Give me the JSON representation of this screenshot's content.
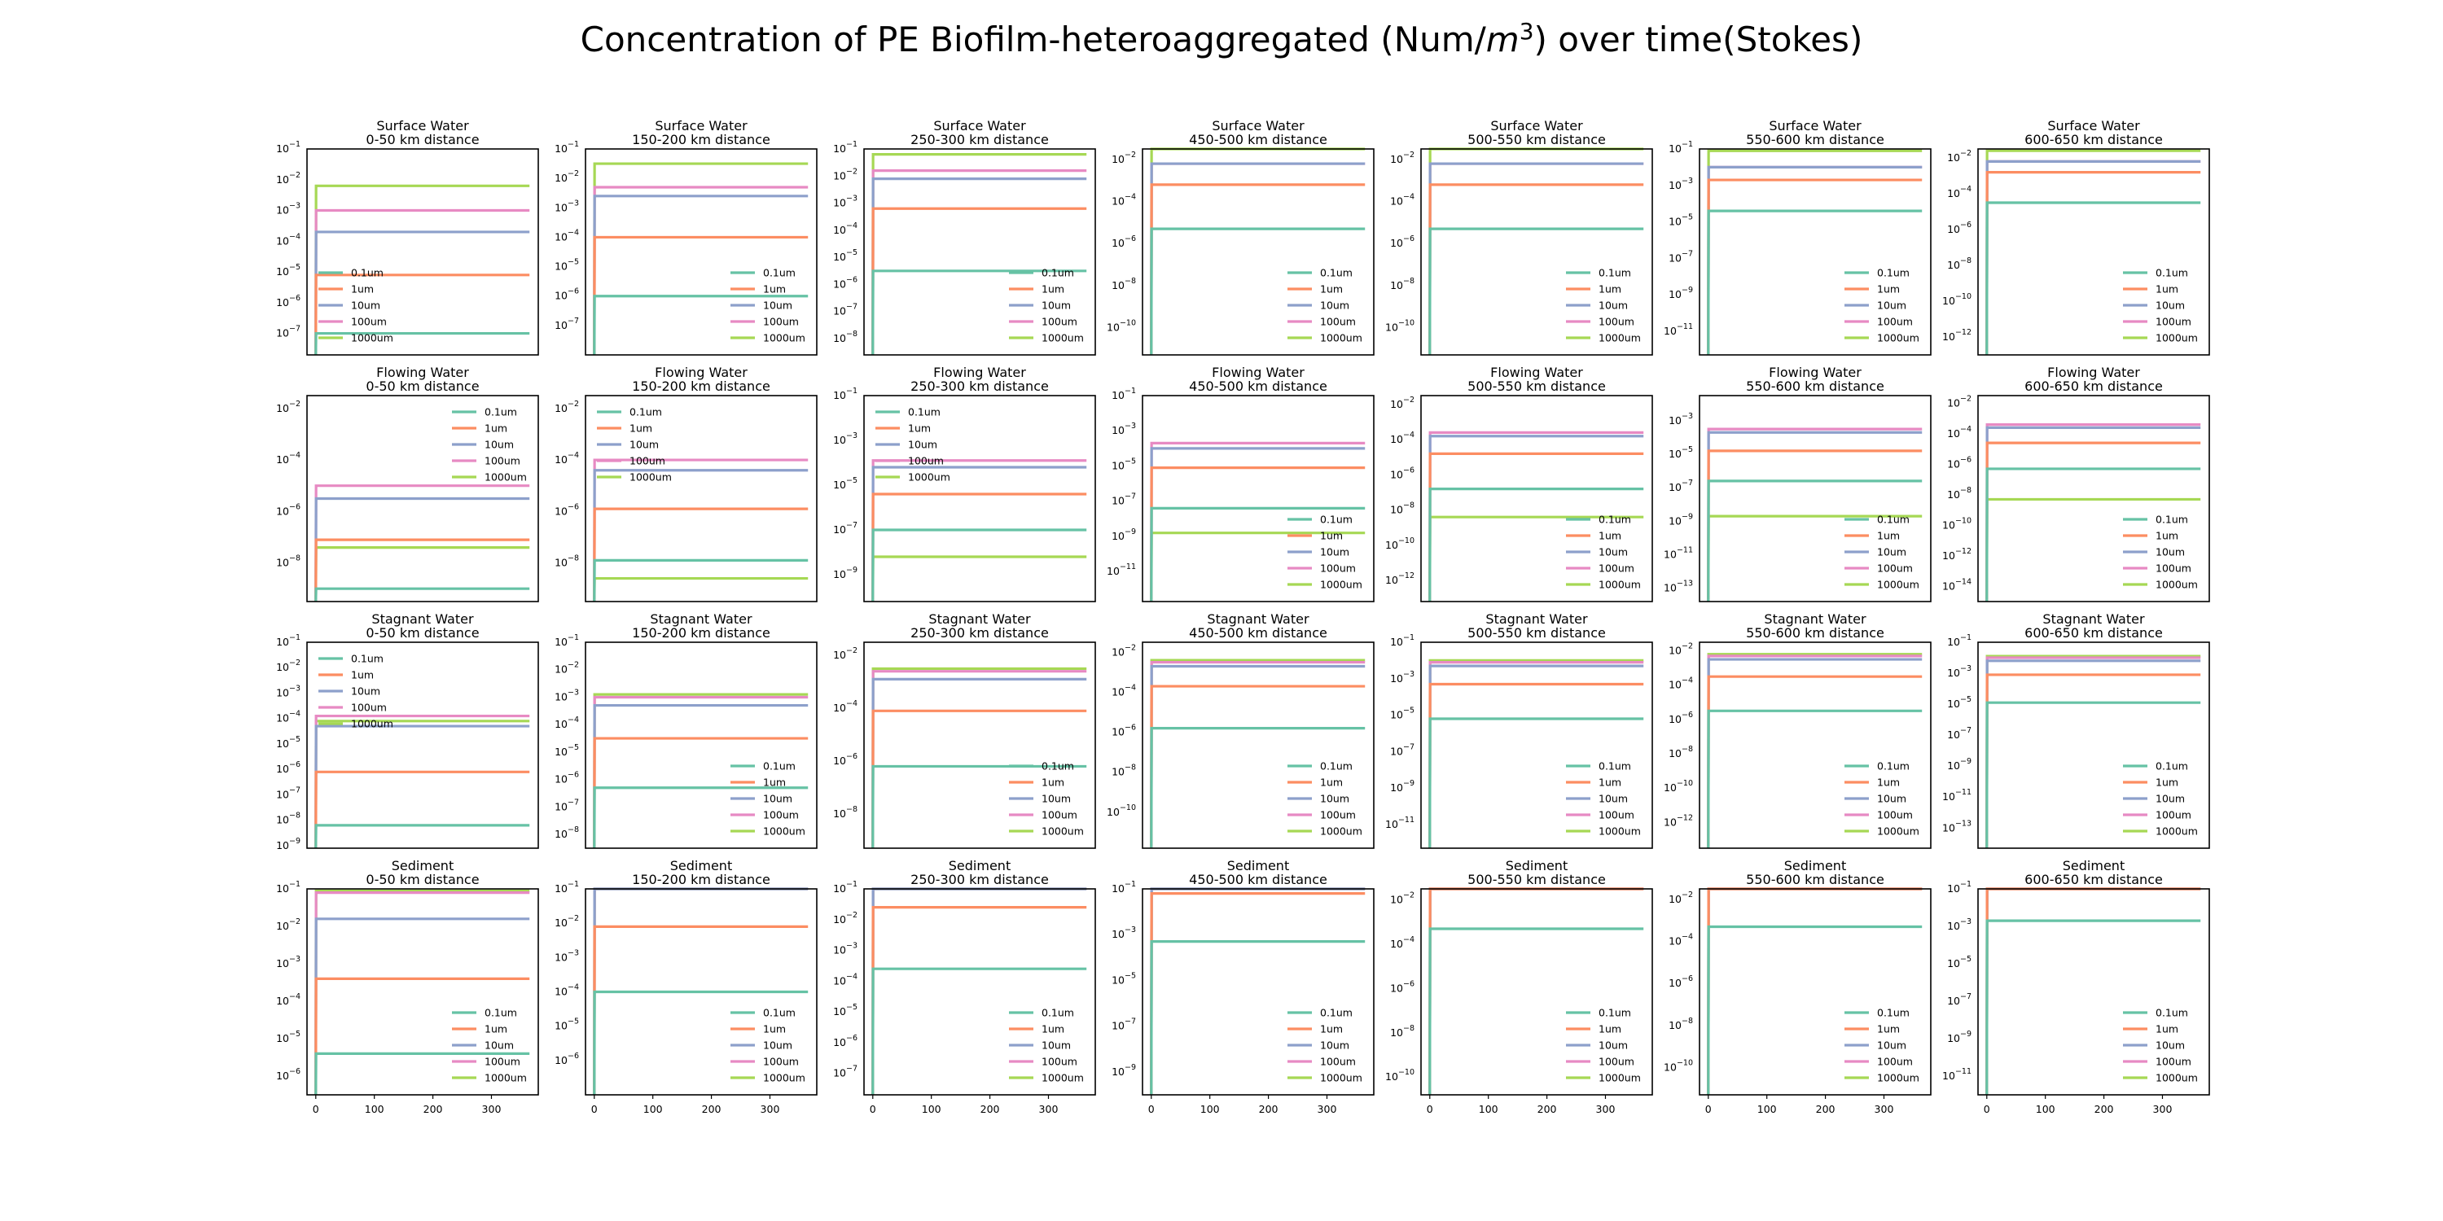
{
  "title": {
    "main": "Concentration of PE Biofilm-heteroaggregated (Num/",
    "unit": "m",
    "sup": "3",
    "end": ") over time(Stokes)"
  },
  "colors": {
    "0.1um": "#66c2a5",
    "1um": "#fc8d62",
    "10um": "#8da0cb",
    "100um": "#e78ac3",
    "1000um": "#a6d854"
  },
  "chart_data": {
    "type": "line",
    "yscale": "log",
    "x_ticks": [
      0,
      100,
      200,
      300
    ],
    "x_range": [
      -15,
      380
    ],
    "legend_labels": [
      "0.1um",
      "1um",
      "10um",
      "100um",
      "1000um"
    ],
    "compartments": [
      "Surface Water",
      "Flowing Water",
      "Stagnant Water",
      "Sediment"
    ],
    "distances": [
      "0-50 km distance",
      "150-200 km distance",
      "250-300 km distance",
      "450-500 km distance",
      "500-550 km distance",
      "550-600 km distance",
      "600-650 km distance"
    ],
    "panels": [
      {
        "compartment": "Surface Water",
        "distance": "0-50 km distance",
        "ylim_exp": [
          -7.7,
          -1
        ],
        "tick_exp": [
          -1,
          -2,
          -3,
          -4,
          -5,
          -6,
          -7
        ],
        "legend": "mid-left",
        "levels": {
          "0.1um": -7,
          "1um": -5.1,
          "10um": -3.7,
          "100um": -3,
          "1000um": -2.2
        }
      },
      {
        "compartment": "Surface Water",
        "distance": "150-200 km distance",
        "ylim_exp": [
          -8,
          -1
        ],
        "tick_exp": [
          -1,
          -2,
          -3,
          -4,
          -5,
          -6,
          -7
        ],
        "legend": "lower-right",
        "levels": {
          "0.1um": -6,
          "1um": -4,
          "10um": -2.6,
          "100um": -2.3,
          "1000um": -1.5
        }
      },
      {
        "compartment": "Surface Water",
        "distance": "250-300 km distance",
        "ylim_exp": [
          -8.6,
          -1
        ],
        "tick_exp": [
          -1,
          -2,
          -3,
          -4,
          -5,
          -6,
          -7,
          -8
        ],
        "legend": "lower-right",
        "levels": {
          "0.1um": -5.5,
          "1um": -3.2,
          "10um": -2.1,
          "100um": -1.8,
          "1000um": -1.2
        }
      },
      {
        "compartment": "Surface Water",
        "distance": "450-500 km distance",
        "ylim_exp": [
          -11.3,
          -1.5
        ],
        "tick_exp": [
          -2,
          -4,
          -6,
          -8,
          -10
        ],
        "legend": "lower-right",
        "levels": {
          "0.1um": -5.3,
          "1um": -3.2,
          "10um": -2.2,
          "100um": -2.2,
          "1000um": -1.5
        }
      },
      {
        "compartment": "Surface Water",
        "distance": "500-550 km distance",
        "ylim_exp": [
          -11.3,
          -1.5
        ],
        "tick_exp": [
          -2,
          -4,
          -6,
          -8,
          -10
        ],
        "legend": "lower-right",
        "levels": {
          "0.1um": -5.3,
          "1um": -3.2,
          "10um": -2.2,
          "100um": -2.2,
          "1000um": -1.5
        }
      },
      {
        "compartment": "Surface Water",
        "distance": "550-600 km distance",
        "ylim_exp": [
          -12.3,
          -1
        ],
        "tick_exp": [
          -1,
          -3,
          -5,
          -7,
          -9,
          -11
        ],
        "legend": "lower-right",
        "levels": {
          "0.1um": -4.4,
          "1um": -2.7,
          "10um": -2,
          "100um": -2,
          "1000um": -1.1
        }
      },
      {
        "compartment": "Surface Water",
        "distance": "600-650 km distance",
        "ylim_exp": [
          -13,
          -1.5
        ],
        "tick_exp": [
          -2,
          -4,
          -6,
          -8,
          -10,
          -12
        ],
        "legend": "lower-right",
        "levels": {
          "0.1um": -4.5,
          "1um": -2.8,
          "10um": -2.2,
          "100um": -2.2,
          "1000um": -1.6
        }
      },
      {
        "compartment": "Flowing Water",
        "distance": "0-50 km distance",
        "ylim_exp": [
          -9.5,
          -1.5
        ],
        "tick_exp": [
          -2,
          -4,
          -6,
          -8
        ],
        "legend": "upper-right",
        "levels": {
          "0.1um": -9,
          "1um": -7.1,
          "10um": -5.5,
          "100um": -5,
          "1000um": -7.4
        }
      },
      {
        "compartment": "Flowing Water",
        "distance": "150-200 km distance",
        "ylim_exp": [
          -9.5,
          -1.5
        ],
        "tick_exp": [
          -2,
          -4,
          -6,
          -8
        ],
        "legend": "upper-left",
        "levels": {
          "0.1um": -7.9,
          "1um": -5.9,
          "10um": -4.4,
          "100um": -4,
          "1000um": -8.6
        }
      },
      {
        "compartment": "Flowing Water",
        "distance": "250-300 km distance",
        "ylim_exp": [
          -10.2,
          -1
        ],
        "tick_exp": [
          -1,
          -3,
          -5,
          -7,
          -9
        ],
        "legend": "upper-left",
        "levels": {
          "0.1um": -7,
          "1um": -5.4,
          "10um": -4.2,
          "100um": -3.9,
          "1000um": -8.2
        }
      },
      {
        "compartment": "Flowing Water",
        "distance": "450-500 km distance",
        "ylim_exp": [
          -12.7,
          -1
        ],
        "tick_exp": [
          -1,
          -3,
          -5,
          -7,
          -9,
          -11
        ],
        "legend": "lower-right",
        "levels": {
          "0.1um": -7.4,
          "1um": -5.1,
          "10um": -4,
          "100um": -3.7,
          "1000um": -8.8
        }
      },
      {
        "compartment": "Flowing Water",
        "distance": "500-550 km distance",
        "ylim_exp": [
          -13.2,
          -1.5
        ],
        "tick_exp": [
          -2,
          -4,
          -6,
          -8,
          -10,
          -12
        ],
        "legend": "lower-right",
        "levels": {
          "0.1um": -6.8,
          "1um": -4.8,
          "10um": -3.8,
          "100um": -3.6,
          "1000um": -8.4
        }
      },
      {
        "compartment": "Flowing Water",
        "distance": "550-600 km distance",
        "ylim_exp": [
          -13.8,
          -1.5
        ],
        "tick_exp": [
          -3,
          -5,
          -7,
          -9,
          -11,
          -13
        ],
        "legend": "lower-right",
        "levels": {
          "0.1um": -6.6,
          "1um": -4.8,
          "10um": -3.7,
          "100um": -3.5,
          "1000um": -8.7
        }
      },
      {
        "compartment": "Flowing Water",
        "distance": "600-650 km distance",
        "ylim_exp": [
          -15,
          -1.5
        ],
        "tick_exp": [
          -2,
          -4,
          -6,
          -8,
          -10,
          -12,
          -14
        ],
        "legend": "lower-right",
        "levels": {
          "0.1um": -6.3,
          "1um": -4.6,
          "10um": -3.6,
          "100um": -3.4,
          "1000um": -8.3
        }
      },
      {
        "compartment": "Stagnant Water",
        "distance": "0-50 km distance",
        "ylim_exp": [
          -9.1,
          -1
        ],
        "tick_exp": [
          -1,
          -2,
          -3,
          -4,
          -5,
          -6,
          -7,
          -8,
          -9
        ],
        "legend": "upper-left",
        "levels": {
          "0.1um": -8.2,
          "1um": -6.1,
          "10um": -4.3,
          "100um": -3.9,
          "1000um": -4.1
        }
      },
      {
        "compartment": "Stagnant Water",
        "distance": "150-200 km distance",
        "ylim_exp": [
          -8.5,
          -1
        ],
        "tick_exp": [
          -1,
          -2,
          -3,
          -4,
          -5,
          -6,
          -7,
          -8
        ],
        "legend": "lower-right",
        "levels": {
          "0.1um": -6.3,
          "1um": -4.5,
          "10um": -3.3,
          "100um": -3,
          "1000um": -2.9
        }
      },
      {
        "compartment": "Stagnant Water",
        "distance": "250-300 km distance",
        "ylim_exp": [
          -9.3,
          -1.5
        ],
        "tick_exp": [
          -2,
          -4,
          -6,
          -8
        ],
        "legend": "lower-right",
        "levels": {
          "0.1um": -6.2,
          "1um": -4.1,
          "10um": -2.9,
          "100um": -2.6,
          "1000um": -2.5
        }
      },
      {
        "compartment": "Stagnant Water",
        "distance": "450-500 km distance",
        "ylim_exp": [
          -11.8,
          -1.5
        ],
        "tick_exp": [
          -2,
          -4,
          -6,
          -8,
          -10
        ],
        "legend": "lower-right",
        "levels": {
          "0.1um": -5.8,
          "1um": -3.7,
          "10um": -2.7,
          "100um": -2.5,
          "1000um": -2.4
        }
      },
      {
        "compartment": "Stagnant Water",
        "distance": "500-550 km distance",
        "ylim_exp": [
          -12.3,
          -1
        ],
        "tick_exp": [
          -1,
          -3,
          -5,
          -7,
          -9,
          -11
        ],
        "legend": "lower-right",
        "levels": {
          "0.1um": -5.2,
          "1um": -3.3,
          "10um": -2.3,
          "100um": -2.1,
          "1000um": -2
        }
      },
      {
        "compartment": "Stagnant Water",
        "distance": "550-600 km distance",
        "ylim_exp": [
          -13.5,
          -1.5
        ],
        "tick_exp": [
          -2,
          -4,
          -6,
          -8,
          -10,
          -12
        ],
        "legend": "lower-right",
        "levels": {
          "0.1um": -5.5,
          "1um": -3.5,
          "10um": -2.5,
          "100um": -2.3,
          "1000um": -2.2
        }
      },
      {
        "compartment": "Stagnant Water",
        "distance": "600-650 km distance",
        "ylim_exp": [
          -14.3,
          -1
        ],
        "tick_exp": [
          -1,
          -3,
          -5,
          -7,
          -9,
          -11,
          -13
        ],
        "legend": "lower-right",
        "levels": {
          "0.1um": -4.9,
          "1um": -3.1,
          "10um": -2.2,
          "100um": -2,
          "1000um": -1.9
        }
      },
      {
        "compartment": "Sediment",
        "distance": "0-50 km distance",
        "ylim_exp": [
          -6.5,
          -1
        ],
        "tick_exp": [
          -1,
          -2,
          -3,
          -4,
          -5,
          -6
        ],
        "legend": "lower-right",
        "levels": {
          "0.1um": -5.4,
          "1um": -3.4,
          "10um": -1.8,
          "100um": -1.1,
          "1000um": -1.05
        }
      },
      {
        "compartment": "Sediment",
        "distance": "150-200 km distance",
        "ylim_exp": [
          -7,
          -1
        ],
        "tick_exp": [
          -1,
          -2,
          -3,
          -4,
          -5,
          -6
        ],
        "legend": "lower-right",
        "levels": {
          "0.1um": -4,
          "1um": -2.1,
          "10um": -1,
          "100um": -0.9,
          "1000um": -0.9
        }
      },
      {
        "compartment": "Sediment",
        "distance": "250-300 km distance",
        "ylim_exp": [
          -7.7,
          -1
        ],
        "tick_exp": [
          -1,
          -2,
          -3,
          -4,
          -5,
          -6,
          -7
        ],
        "legend": "lower-right",
        "levels": {
          "0.1um": -3.6,
          "1um": -1.6,
          "10um": -0.9,
          "100um": -0.85,
          "1000um": -0.85
        }
      },
      {
        "compartment": "Sediment",
        "distance": "450-500 km distance",
        "ylim_exp": [
          -10,
          -1
        ],
        "tick_exp": [
          -1,
          -3,
          -5,
          -7,
          -9
        ],
        "legend": "lower-right",
        "levels": {
          "0.1um": -3.3,
          "1um": -1.2,
          "10um": -0.9,
          "100um": -0.85,
          "1000um": -0.85
        }
      },
      {
        "compartment": "Sediment",
        "distance": "500-550 km distance",
        "ylim_exp": [
          -10.8,
          -1.5
        ],
        "tick_exp": [
          -2,
          -4,
          -6,
          -8,
          -10
        ],
        "legend": "lower-right",
        "levels": {
          "0.1um": -3.3,
          "1um": -1.5,
          "10um": -1.3,
          "100um": -1.25,
          "1000um": -1.25
        }
      },
      {
        "compartment": "Sediment",
        "distance": "550-600 km distance",
        "ylim_exp": [
          -11.3,
          -1.5
        ],
        "tick_exp": [
          -2,
          -4,
          -6,
          -8,
          -10
        ],
        "legend": "lower-right",
        "levels": {
          "0.1um": -3.3,
          "1um": -1.45,
          "10um": -1.3,
          "100um": -1.25,
          "1000um": -1.25
        }
      },
      {
        "compartment": "Sediment",
        "distance": "600-650 km distance",
        "ylim_exp": [
          -12,
          -1
        ],
        "tick_exp": [
          -1,
          -3,
          -5,
          -7,
          -9,
          -11
        ],
        "legend": "lower-right",
        "levels": {
          "0.1um": -2.7,
          "1um": -0.95,
          "10um": -0.9,
          "100um": -0.85,
          "1000um": -0.85
        }
      }
    ]
  }
}
